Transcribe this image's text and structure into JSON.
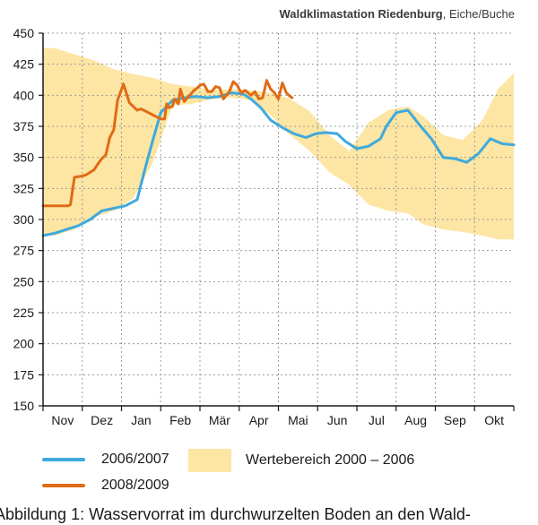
{
  "header": {
    "station": "Waldklimastation Riedenburg",
    "separator": ",",
    "trees": "Eiche/Buche"
  },
  "caption": "Abbildung 1: Wasservorrat im durchwurzelten Boden an den Wald-",
  "chart_data": {
    "type": "line",
    "title": "",
    "xlabel": "",
    "ylabel": "",
    "xlim": [
      0,
      12
    ],
    "ylim": [
      150,
      450
    ],
    "yticks": [
      150,
      175,
      200,
      225,
      250,
      275,
      300,
      325,
      350,
      375,
      400,
      425,
      450
    ],
    "xtick_labels": [
      "Nov",
      "Dez",
      "Jan",
      "Feb",
      "Mär",
      "Apr",
      "Mai",
      "Jun",
      "Jul",
      "Aug",
      "Sep",
      "Okt"
    ],
    "grid": true,
    "colors": {
      "series_2006_2007": "#3fa9dc",
      "series_2008_2009": "#e06b16",
      "range_band": "#fde5a3",
      "grid": "#9a9a9a",
      "axis": "#1a1a1a"
    },
    "range_band": {
      "name": "Wertebereich 2000 – 2006",
      "x": [
        0,
        0.3,
        0.8,
        1.3,
        1.8,
        2.3,
        2.8,
        3.3,
        3.8,
        4.3,
        4.8,
        5.3,
        5.8,
        6.3,
        6.8,
        7.3,
        7.8,
        8.3,
        8.8,
        9.3,
        9.7,
        10.2,
        10.7,
        11.2,
        11.6,
        12
      ],
      "upper": [
        438,
        438,
        433,
        428,
        421,
        417,
        414,
        409,
        407,
        404,
        405,
        404,
        402,
        397,
        387,
        368,
        355,
        378,
        388,
        391,
        383,
        368,
        364,
        380,
        405,
        418
      ],
      "lower": [
        287,
        287,
        292,
        302,
        307,
        317,
        346,
        392,
        393,
        397,
        398,
        396,
        384,
        368,
        355,
        338,
        328,
        312,
        307,
        305,
        296,
        292,
        290,
        287,
        284,
        284
      ]
    },
    "series": [
      {
        "name": "2006/2007",
        "x": [
          0,
          0.3,
          0.6,
          0.9,
          1.2,
          1.5,
          1.8,
          2.1,
          2.4,
          2.6,
          2.8,
          3.0,
          3.3,
          3.6,
          3.9,
          4.2,
          4.5,
          4.8,
          5.1,
          5.3,
          5.55,
          5.8,
          6.1,
          6.4,
          6.7,
          6.95,
          7.2,
          7.5,
          7.7,
          8.0,
          8.3,
          8.6,
          8.75,
          9.0,
          9.3,
          9.6,
          9.9,
          10.2,
          10.5,
          10.8,
          11.1,
          11.4,
          11.7,
          12
        ],
        "y": [
          287,
          289,
          292,
          295,
          300,
          307,
          309,
          311,
          316,
          341,
          364,
          386,
          396,
          398,
          399,
          398,
          399,
          402,
          401,
          397,
          390,
          380,
          374,
          369,
          366,
          369,
          370,
          369,
          363,
          357,
          359,
          365,
          375,
          386,
          388,
          376,
          365,
          350,
          349,
          346,
          353,
          365,
          361,
          360
        ]
      },
      {
        "name": "2008/2009",
        "x": [
          0,
          0.3,
          0.55,
          0.65,
          0.7,
          0.8,
          1.0,
          1.1,
          1.3,
          1.45,
          1.5,
          1.6,
          1.7,
          1.8,
          1.9,
          2.05,
          2.2,
          2.4,
          2.5,
          3.0,
          3.1,
          3.15,
          3.2,
          3.3,
          3.35,
          3.45,
          3.5,
          3.6,
          3.85,
          3.9,
          4.0,
          4.1,
          4.2,
          4.3,
          4.4,
          4.5,
          4.6,
          4.75,
          4.85,
          4.95,
          5.05,
          5.15,
          5.3,
          5.4,
          5.5,
          5.6,
          5.7,
          5.8,
          5.9,
          6.0,
          6.1,
          6.2,
          6.3,
          6.35
        ],
        "y": [
          311,
          311,
          311,
          311,
          312,
          334,
          335,
          336,
          340,
          347,
          349,
          352,
          366,
          372,
          396,
          409,
          394,
          388,
          389,
          381,
          381,
          393,
          390,
          391,
          397,
          393,
          405,
          395,
          404,
          405,
          408,
          409,
          403,
          403,
          407,
          406,
          397,
          403,
          411,
          408,
          402,
          404,
          400,
          403,
          397,
          398,
          412,
          405,
          402,
          397,
          410,
          402,
          399,
          398
        ]
      }
    ]
  }
}
